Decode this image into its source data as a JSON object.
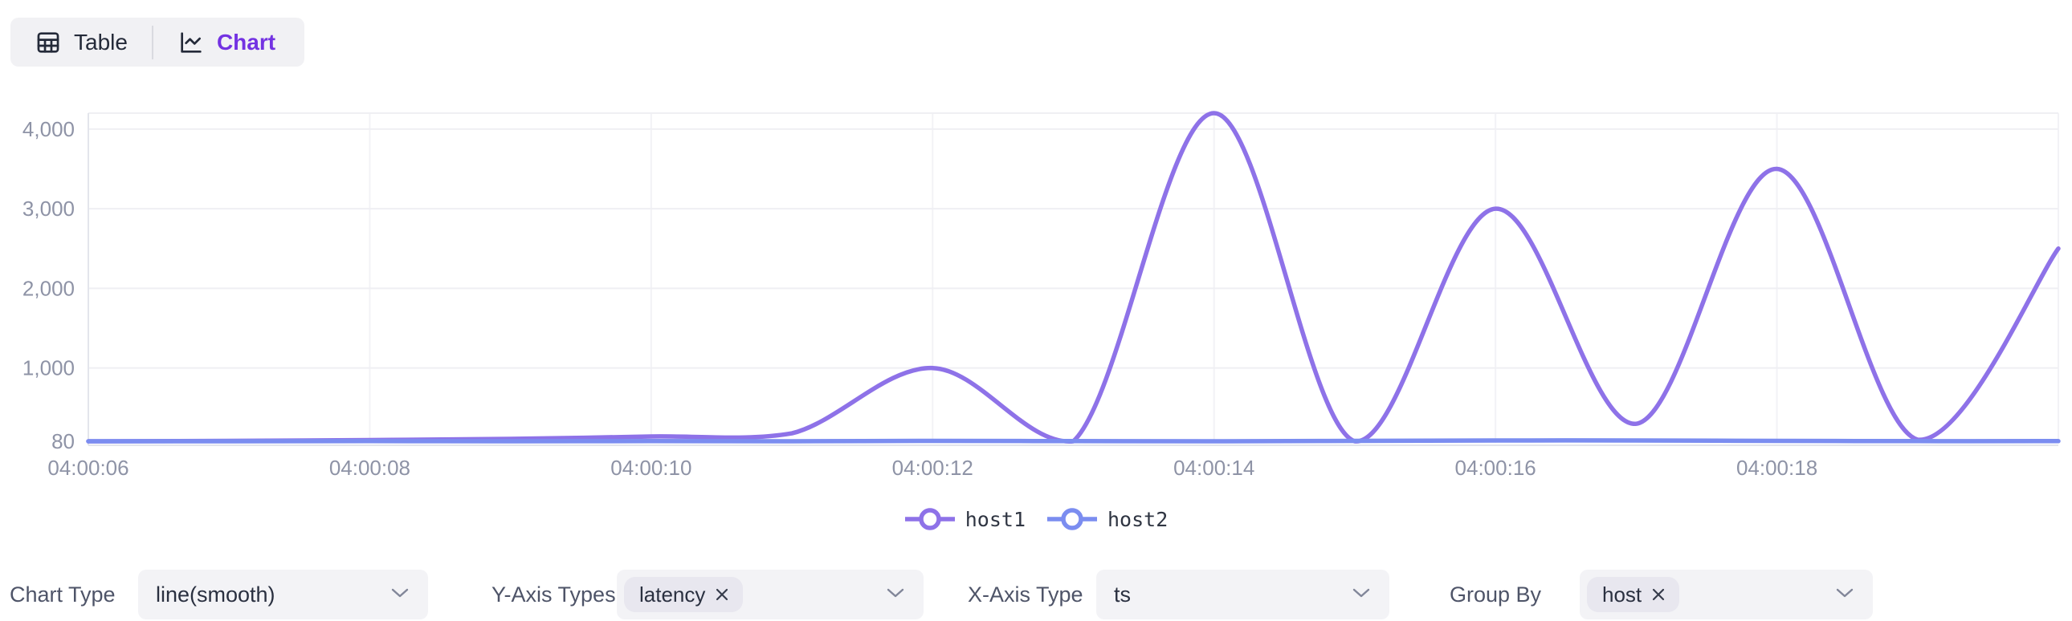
{
  "view_toggle": {
    "table_label": "Table",
    "chart_label": "Chart",
    "active": "Chart",
    "active_color": "#7332e2"
  },
  "chart_data": {
    "type": "line",
    "smooth": true,
    "x": [
      "04:00:06",
      "04:00:07",
      "04:00:08",
      "04:00:09",
      "04:00:10",
      "04:00:11",
      "04:00:12",
      "04:00:13",
      "04:00:14",
      "04:00:15",
      "04:00:16",
      "04:00:17",
      "04:00:18",
      "04:00:19",
      "04:00:20"
    ],
    "series": [
      {
        "name": "host1",
        "color": "#8e72e8",
        "values": [
          80,
          85,
          95,
          110,
          140,
          180,
          1000,
          80,
          4200,
          80,
          3000,
          300,
          3500,
          100,
          2500
        ]
      },
      {
        "name": "host2",
        "color": "#7b8df0",
        "values": [
          80,
          80,
          82,
          80,
          82,
          80,
          85,
          82,
          80,
          85,
          90,
          90,
          85,
          82,
          82
        ]
      }
    ],
    "x_tick_labels": [
      "04:00:06",
      "04:00:08",
      "04:00:10",
      "04:00:12",
      "04:00:14",
      "04:00:16",
      "04:00:18"
    ],
    "y_ticks": [
      80,
      1000,
      2000,
      3000,
      4000
    ],
    "y_tick_labels": [
      "80",
      "1,000",
      "2,000",
      "3,000",
      "4,000"
    ],
    "ylim": [
      80,
      4200
    ],
    "grid": true,
    "legend": {
      "position": "bottom",
      "items": [
        "host1",
        "host2"
      ]
    }
  },
  "controls": [
    {
      "label": "Chart Type",
      "type": "select",
      "value": "line(smooth)"
    },
    {
      "label": "Y-Axis Types",
      "type": "multiselect",
      "tags": [
        "latency"
      ]
    },
    {
      "label": "X-Axis Type",
      "type": "select",
      "value": "ts"
    },
    {
      "label": "Group By",
      "type": "multiselect",
      "tags": [
        "host"
      ]
    }
  ]
}
